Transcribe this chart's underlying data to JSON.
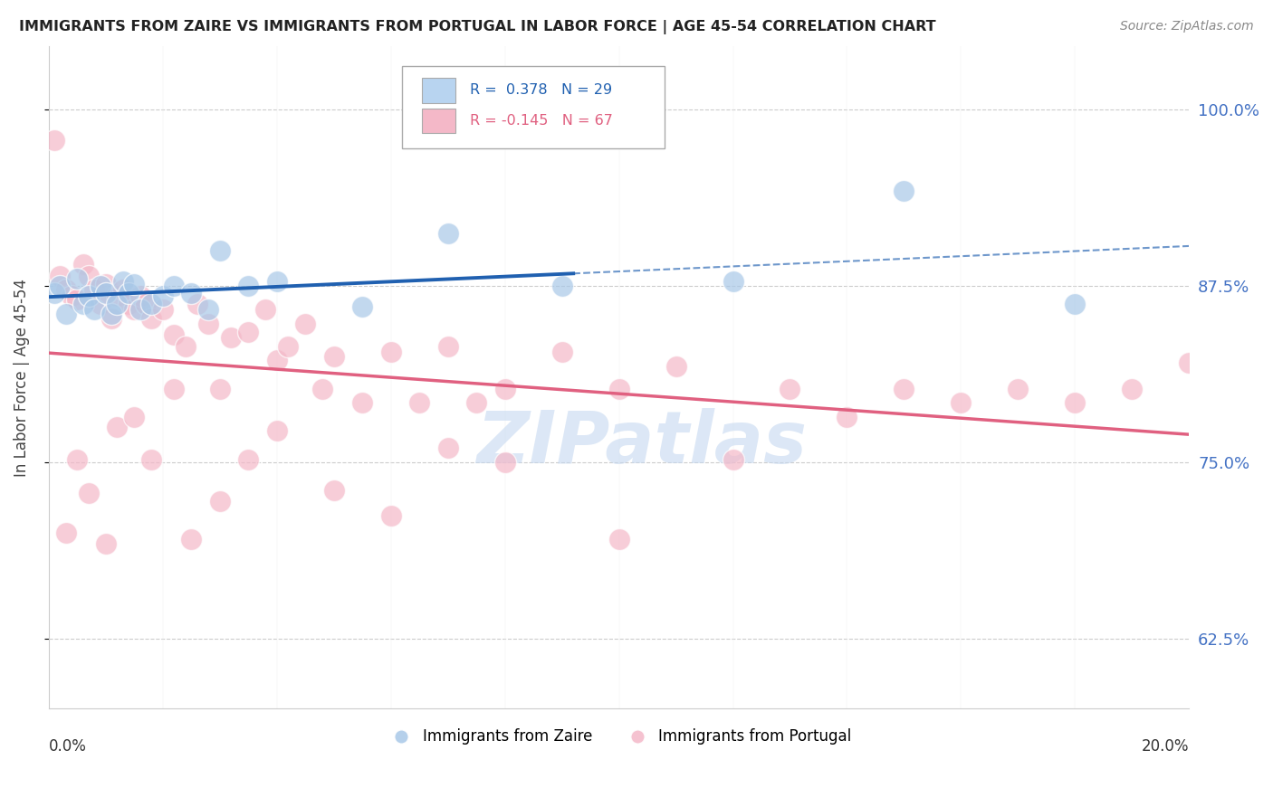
{
  "title": "IMMIGRANTS FROM ZAIRE VS IMMIGRANTS FROM PORTUGAL IN LABOR FORCE | AGE 45-54 CORRELATION CHART",
  "source": "Source: ZipAtlas.com",
  "ylabel": "In Labor Force | Age 45-54",
  "y_ticks": [
    0.625,
    0.75,
    0.875,
    1.0
  ],
  "y_tick_labels": [
    "62.5%",
    "75.0%",
    "87.5%",
    "100.0%"
  ],
  "x_min": 0.0,
  "x_max": 0.2,
  "y_min": 0.575,
  "y_max": 1.045,
  "zaire_R": 0.378,
  "zaire_N": 29,
  "portugal_R": -0.145,
  "portugal_N": 67,
  "zaire_color": "#a8c8e8",
  "portugal_color": "#f4b8c8",
  "zaire_line_color": "#2060b0",
  "portugal_line_color": "#e06080",
  "legend_box_zaire": "#b8d4f0",
  "legend_box_portugal": "#f4b8c8",
  "zaire_x": [
    0.001,
    0.002,
    0.003,
    0.005,
    0.006,
    0.007,
    0.008,
    0.009,
    0.01,
    0.011,
    0.012,
    0.013,
    0.014,
    0.015,
    0.016,
    0.018,
    0.02,
    0.022,
    0.025,
    0.028,
    0.03,
    0.035,
    0.04,
    0.055,
    0.07,
    0.09,
    0.12,
    0.15,
    0.18
  ],
  "zaire_y": [
    0.87,
    0.875,
    0.855,
    0.88,
    0.862,
    0.868,
    0.858,
    0.875,
    0.87,
    0.855,
    0.862,
    0.878,
    0.87,
    0.876,
    0.858,
    0.862,
    0.868,
    0.875,
    0.87,
    0.858,
    0.9,
    0.875,
    0.878,
    0.86,
    0.912,
    0.875,
    0.878,
    0.942,
    0.862
  ],
  "portugal_x": [
    0.001,
    0.002,
    0.003,
    0.004,
    0.005,
    0.006,
    0.007,
    0.008,
    0.009,
    0.01,
    0.011,
    0.012,
    0.013,
    0.014,
    0.015,
    0.016,
    0.017,
    0.018,
    0.02,
    0.022,
    0.024,
    0.026,
    0.028,
    0.03,
    0.032,
    0.035,
    0.038,
    0.04,
    0.042,
    0.045,
    0.048,
    0.05,
    0.055,
    0.06,
    0.065,
    0.07,
    0.075,
    0.08,
    0.09,
    0.1,
    0.11,
    0.12,
    0.13,
    0.14,
    0.15,
    0.16,
    0.17,
    0.18,
    0.19,
    0.2,
    0.003,
    0.005,
    0.007,
    0.01,
    0.012,
    0.015,
    0.018,
    0.022,
    0.025,
    0.03,
    0.035,
    0.04,
    0.05,
    0.06,
    0.07,
    0.08,
    0.1
  ],
  "portugal_y": [
    0.978,
    0.882,
    0.872,
    0.868,
    0.865,
    0.89,
    0.882,
    0.872,
    0.862,
    0.876,
    0.852,
    0.868,
    0.872,
    0.862,
    0.858,
    0.868,
    0.862,
    0.852,
    0.858,
    0.84,
    0.832,
    0.862,
    0.848,
    0.802,
    0.838,
    0.842,
    0.858,
    0.822,
    0.832,
    0.848,
    0.802,
    0.825,
    0.792,
    0.828,
    0.792,
    0.832,
    0.792,
    0.802,
    0.828,
    0.802,
    0.818,
    0.752,
    0.802,
    0.782,
    0.802,
    0.792,
    0.802,
    0.792,
    0.802,
    0.82,
    0.7,
    0.752,
    0.728,
    0.692,
    0.775,
    0.782,
    0.752,
    0.802,
    0.695,
    0.722,
    0.752,
    0.772,
    0.73,
    0.712,
    0.76,
    0.75,
    0.695
  ],
  "watermark_text": "ZIPatlas",
  "watermark_color": "#c5d8f0",
  "background_color": "#ffffff",
  "grid_color": "#cccccc",
  "spine_color": "#cccccc"
}
